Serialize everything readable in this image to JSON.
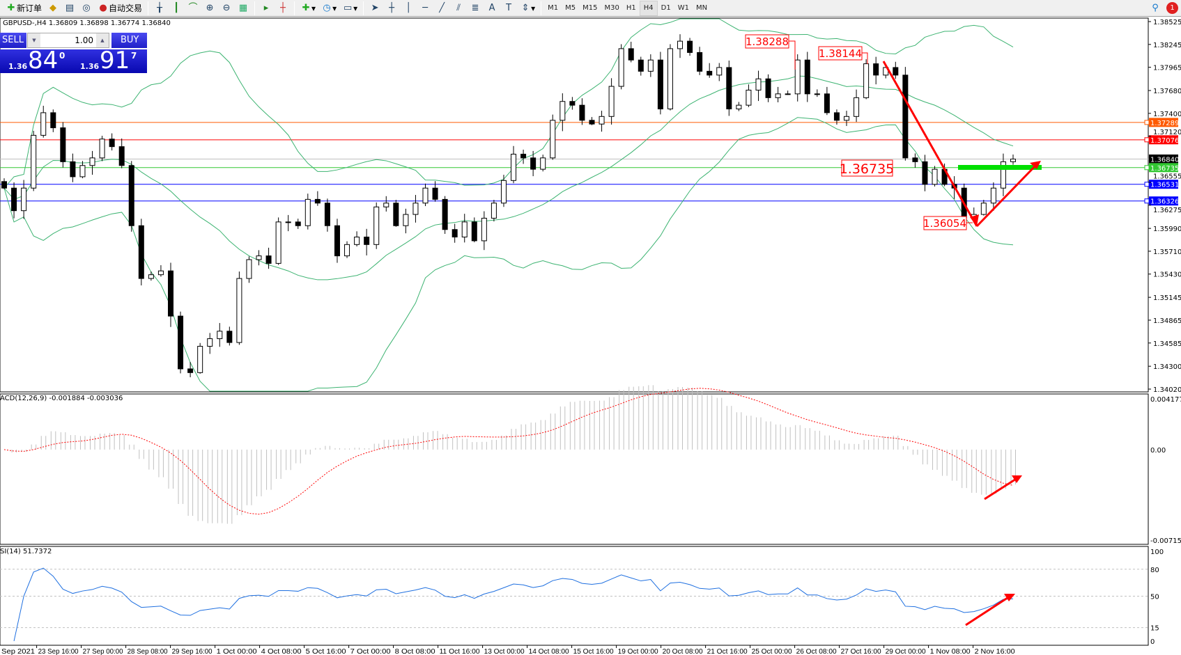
{
  "toolbar": {
    "new_order": "新订单",
    "auto_trading": "自动交易",
    "timeframes": [
      "M1",
      "M5",
      "M15",
      "M30",
      "H1",
      "H4",
      "D1",
      "W1",
      "MN"
    ],
    "active_timeframe": "H4",
    "notification_count": "1",
    "icons": [
      "new-order-icon",
      "market-watch-icon",
      "data-window-icon",
      "navigator-icon",
      "auto-trading-icon",
      "bar-chart-icon",
      "candlestick-icon",
      "line-chart-icon",
      "zoom-in-icon",
      "zoom-out-icon",
      "tile-windows-icon",
      "auto-scroll-icon",
      "chart-shift-icon",
      "indicators-icon",
      "periods-icon",
      "templates-icon",
      "cursor-icon",
      "crosshair-icon",
      "vertical-line-icon",
      "horizontal-line-icon",
      "trendline-icon",
      "equidistant-channel-icon",
      "fibonacci-icon",
      "text-icon",
      "text-label-icon",
      "arrows-icon",
      "search-icon",
      "notification-icon"
    ]
  },
  "chart": {
    "symbol_line": "GBPUSD-,H4  1.36809 1.36898 1.36774 1.36840",
    "one_click": {
      "sell": "SELL",
      "buy": "BUY",
      "lot": "1.00",
      "sell_small": "1.36",
      "sell_big": "84",
      "sell_pip": "0",
      "buy_small": "1.36",
      "buy_big": "91",
      "buy_pip": "7"
    },
    "macd_label": "ACD(12,26,9) -0.001884 -0.003036",
    "rsi_label": "SI(14) 51.7372"
  },
  "chart_data": {
    "type": "candlestick",
    "symbol": "GBPUSD-",
    "timeframe": "H4",
    "price_range": [
      1.3402,
      1.38525
    ],
    "price_ticks": [
      "1.38525",
      "1.38245",
      "1.37965",
      "1.37680",
      "1.37400",
      "1.37120",
      "1.36555",
      "1.36275",
      "1.35990",
      "1.35710",
      "1.35430",
      "1.35145",
      "1.34865",
      "1.34585",
      "1.34300",
      "1.34020"
    ],
    "time_ticks": [
      "Sep 2021",
      "23 Sep 16:00",
      "27 Sep 00:00",
      "28 Sep 08:00",
      "29 Sep 16:00",
      "1 Oct 00:00",
      "4 Oct 08:00",
      "5 Oct 16:00",
      "7 Oct 00:00",
      "8 Oct 08:00",
      "11 Oct 16:00",
      "13 Oct 00:00",
      "14 Oct 08:00",
      "15 Oct 16:00",
      "19 Oct 00:00",
      "20 Oct 08:00",
      "21 Oct 16:00",
      "25 Oct 00:00",
      "26 Oct 08:00",
      "27 Oct 16:00",
      "29 Oct 00:00",
      "1 Nov 08:00",
      "2 Nov 16:00"
    ],
    "closes": [
      1.36484,
      1.36207,
      1.36484,
      1.37131,
      1.37408,
      1.37223,
      1.36807,
      1.36623,
      1.36761,
      1.36854,
      1.37085,
      1.36992,
      1.36761,
      1.36023,
      1.35376,
      1.35422,
      1.35469,
      1.34915,
      1.34268,
      1.34222,
      1.34545,
      1.34638,
      1.3473,
      1.34591,
      1.35376,
      1.35607,
      1.35653,
      1.35561,
      1.36069,
      1.36069,
      1.36023,
      1.36346,
      1.363,
      1.36023,
      1.35653,
      1.35792,
      1.35884,
      1.35792,
      1.36253,
      1.363,
      1.36023,
      1.36161,
      1.363,
      1.36484,
      1.36346,
      1.35976,
      1.35884,
      1.36069,
      1.35838,
      1.36115,
      1.363,
      1.36577,
      1.369,
      1.36854,
      1.36715,
      1.36854,
      1.37315,
      1.37546,
      1.375,
      1.37315,
      1.37269,
      1.37362,
      1.37731,
      1.38193,
      1.38054,
      1.37916,
      1.38054,
      1.37454,
      1.38193,
      1.38285,
      1.38146,
      1.37916,
      1.37869,
      1.37962,
      1.37454,
      1.375,
      1.37685,
      1.37823,
      1.37592,
      1.37639,
      1.37639,
      1.38054,
      1.37639,
      1.37639,
      1.37408,
      1.37315,
      1.37362,
      1.37592,
      1.38008,
      1.37869,
      1.37962,
      1.37869,
      1.36854,
      1.36807,
      1.3653,
      1.36715,
      1.3653,
      1.36484,
      1.36115,
      1.36161,
      1.363,
      1.36484,
      1.36807,
      1.3684
    ],
    "levels": [
      {
        "price": "1.37289",
        "color": "#ff5a00"
      },
      {
        "price": "1.37076",
        "color": "#ff0000"
      },
      {
        "price": "1.36840",
        "color": "#000000",
        "line": "#c0c0c0"
      },
      {
        "price": "1.36735",
        "color": "#32c832"
      },
      {
        "price": "1.36531",
        "color": "#0000ff"
      },
      {
        "price": "1.36326",
        "color": "#0000ff"
      }
    ],
    "price_labels": [
      "1.38288",
      "1.38144",
      "1.36735",
      "1.36054"
    ],
    "indicators": {
      "bollinger": {
        "color": "#3cb371"
      },
      "macd": {
        "params": "12,26,9",
        "range": [
          -0.007153,
          0.004177
        ],
        "ticks": [
          "0.004177",
          "0.00",
          "-0.007153"
        ],
        "histogram_color": "#c0c0c0",
        "signal_color": "#ff0000"
      },
      "rsi": {
        "period": 14,
        "ticks": [
          "100",
          "80",
          "50",
          "15",
          "0"
        ],
        "color": "#1e6fe0"
      }
    },
    "colors": {
      "bull": "#ffffff",
      "bear": "#000000",
      "annotation": "#ff0000",
      "zone": "#00e000"
    }
  }
}
